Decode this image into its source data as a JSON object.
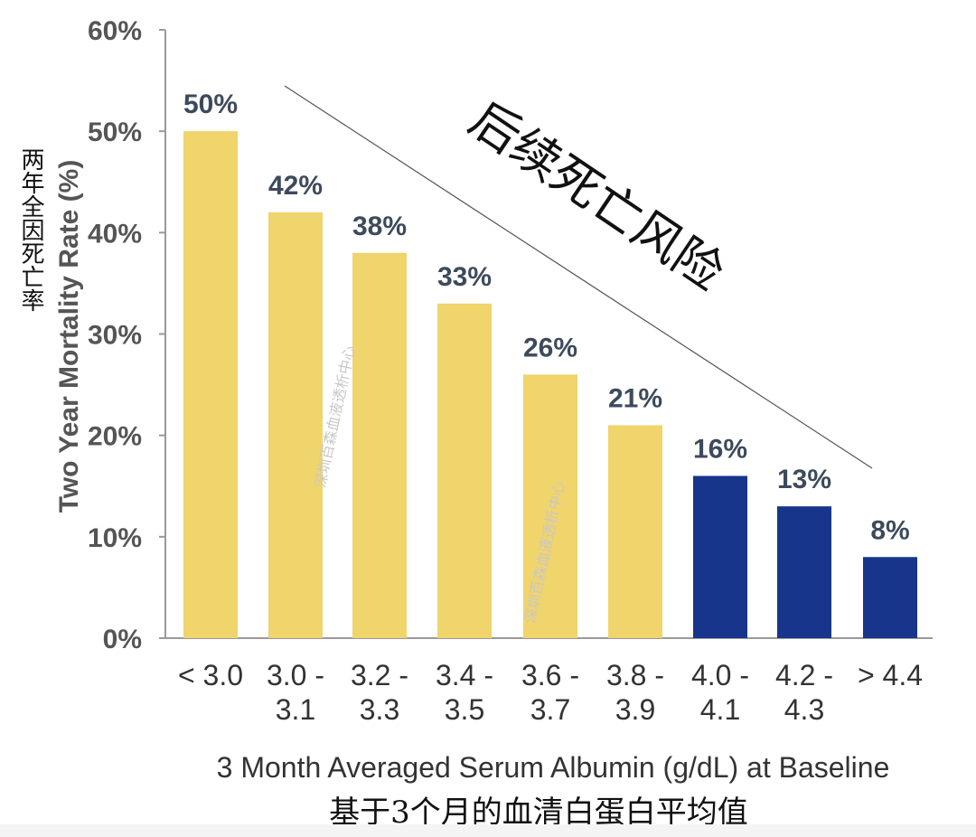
{
  "chart_data": {
    "type": "bar",
    "categories": [
      [
        "< 3.0"
      ],
      [
        "3.0 -",
        "3.1"
      ],
      [
        "3.2 -",
        "3.3"
      ],
      [
        "3.4 -",
        "3.5"
      ],
      [
        "3.6 -",
        "3.7"
      ],
      [
        "3.8 -",
        "3.9"
      ],
      [
        "4.0 -",
        "4.1"
      ],
      [
        "4.2 -",
        "4.3"
      ],
      [
        "> 4.4"
      ]
    ],
    "values": [
      50,
      42,
      38,
      33,
      26,
      21,
      16,
      13,
      8
    ],
    "value_labels": [
      "50%",
      "42%",
      "38%",
      "33%",
      "26%",
      "21%",
      "16%",
      "13%",
      "8%"
    ],
    "bar_colors": [
      "#f0d46c",
      "#f0d46c",
      "#f0d46c",
      "#f0d46c",
      "#f0d46c",
      "#f0d46c",
      "#17358a",
      "#17358a",
      "#17358a"
    ],
    "ylim": [
      0,
      60
    ],
    "yticks": [
      0,
      10,
      20,
      30,
      40,
      50,
      60
    ],
    "ytick_labels": [
      "0%",
      "10%",
      "20%",
      "30%",
      "40%",
      "50%",
      "60%"
    ],
    "ylabel": "Two Year Mortality Rate (%)",
    "ylabel_cn": "两年全因死亡率",
    "xlabel": "3 Month Averaged Serum Albumin (g/dL) at Baseline",
    "xlabel_cn": "基于3个月的血清白蛋白平均值",
    "annotation": "后续死亡风险",
    "watermark": "深圳百森血液透析中心",
    "grid": false,
    "legend": "none"
  }
}
